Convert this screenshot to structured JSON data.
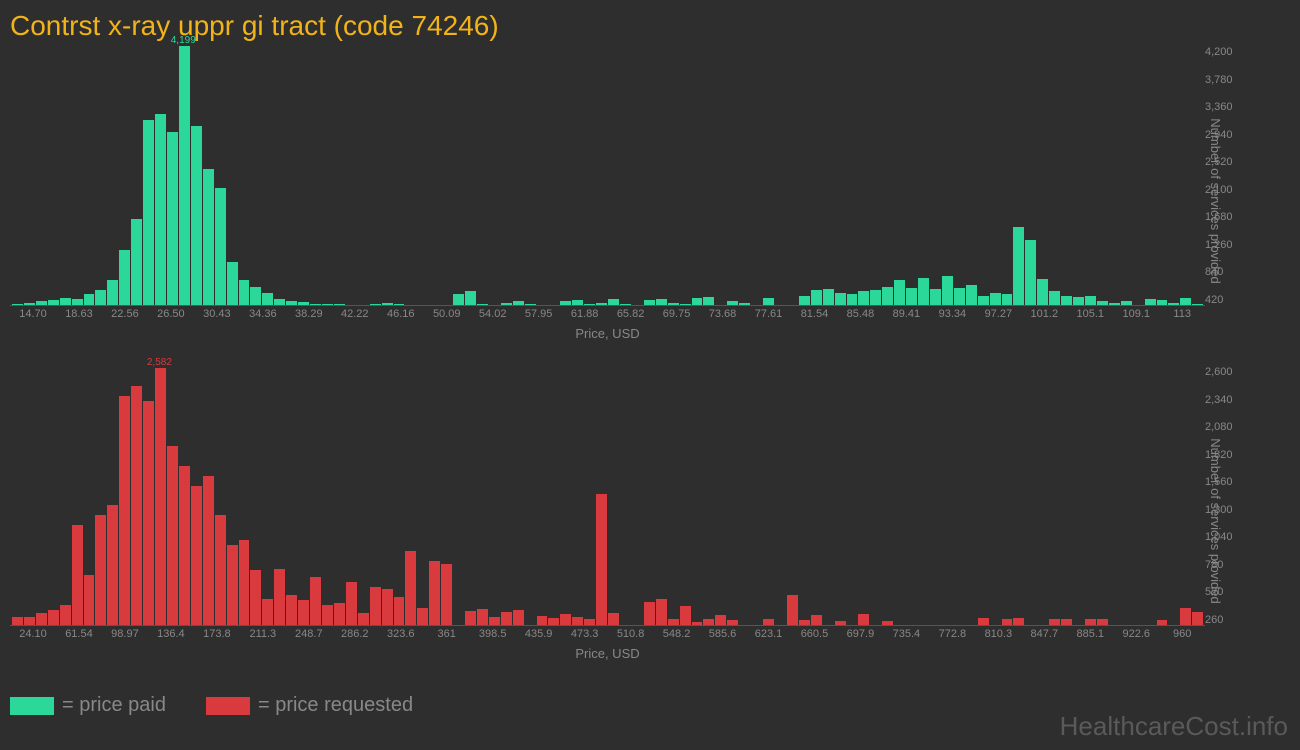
{
  "title": "Contrst x-ray uppr gi tract (code 74246)",
  "background_color": "#2e2e2e",
  "title_color": "#f2b318",
  "axis_text_color": "#888888",
  "watermark_text": "HealthcareCost.info",
  "watermark_color": "#5a5a5a",
  "x_axis_label": "Price, USD",
  "y_axis_label": "Number of services provided",
  "legend": [
    {
      "label": "= price paid",
      "color": "#2bd89a"
    },
    {
      "label": "= price requested",
      "color": "#d83a3d"
    }
  ],
  "chart_top": {
    "type": "histogram",
    "bar_color": "#2bd89a",
    "peak_label": "4,199",
    "peak_label_color": "#2bd89a",
    "ylim": [
      0,
      4200
    ],
    "y_ticks": [
      "4,200",
      "3,780",
      "3,360",
      "2,940",
      "2,520",
      "2,100",
      "1,680",
      "1,260",
      "840",
      "420"
    ],
    "x_ticks": [
      "14.70",
      "18.63",
      "22.56",
      "26.50",
      "30.43",
      "34.36",
      "38.29",
      "42.22",
      "46.16",
      "50.09",
      "54.02",
      "57.95",
      "61.88",
      "65.82",
      "69.75",
      "73.68",
      "77.61",
      "81.54",
      "85.48",
      "89.41",
      "93.34",
      "97.27",
      "101.2",
      "105.1",
      "109.1",
      "113"
    ],
    "values": [
      20,
      40,
      60,
      80,
      120,
      100,
      180,
      250,
      400,
      900,
      1400,
      3000,
      3100,
      2800,
      4199,
      2900,
      2200,
      1900,
      700,
      400,
      300,
      200,
      100,
      60,
      50,
      20,
      10,
      10,
      0,
      0,
      20,
      30,
      10,
      0,
      0,
      0,
      0,
      180,
      220,
      20,
      0,
      30,
      60,
      10,
      0,
      0,
      70,
      80,
      10,
      40,
      90,
      20,
      0,
      80,
      100,
      40,
      20,
      110,
      130,
      0,
      60,
      40,
      0,
      120,
      0,
      0,
      140,
      240,
      260,
      200,
      180,
      230,
      250,
      300,
      400,
      280,
      430,
      260,
      470,
      280,
      320,
      150,
      200,
      180,
      1260,
      1050,
      420,
      220,
      140,
      130,
      150,
      60,
      40,
      70,
      0,
      90,
      80,
      30,
      110,
      10
    ],
    "peak_index": 14
  },
  "chart_bottom": {
    "type": "histogram",
    "bar_color": "#d83a3d",
    "peak_label": "2,582",
    "peak_label_color": "#d83a3d",
    "ylim": [
      0,
      2600
    ],
    "y_ticks": [
      "2,600",
      "2,340",
      "2,080",
      "1,820",
      "1,560",
      "1,300",
      "1,040",
      "780",
      "520",
      "260"
    ],
    "x_ticks": [
      "24.10",
      "61.54",
      "98.97",
      "136.4",
      "173.8",
      "211.3",
      "248.7",
      "286.2",
      "323.6",
      "361",
      "398.5",
      "435.9",
      "473.3",
      "510.8",
      "548.2",
      "585.6",
      "623.1",
      "660.5",
      "697.9",
      "735.4",
      "772.8",
      "810.3",
      "847.7",
      "885.1",
      "922.6",
      "960"
    ],
    "values": [
      80,
      80,
      120,
      150,
      200,
      1000,
      500,
      1100,
      1200,
      2300,
      2400,
      2250,
      2582,
      1800,
      1600,
      1400,
      1500,
      1100,
      800,
      850,
      550,
      260,
      560,
      300,
      250,
      480,
      200,
      220,
      430,
      120,
      380,
      360,
      280,
      740,
      170,
      640,
      610,
      0,
      140,
      160,
      80,
      130,
      150,
      0,
      90,
      70,
      110,
      80,
      60,
      1320,
      120,
      0,
      0,
      230,
      260,
      60,
      190,
      30,
      60,
      100,
      50,
      0,
      0,
      60,
      0,
      300,
      50,
      100,
      0,
      40,
      0,
      110,
      0,
      40,
      0,
      0,
      0,
      0,
      0,
      0,
      0,
      70,
      0,
      60,
      70,
      0,
      0,
      60,
      60,
      0,
      60,
      60,
      0,
      0,
      0,
      0,
      50,
      0,
      170,
      130
    ],
    "peak_index": 12
  }
}
